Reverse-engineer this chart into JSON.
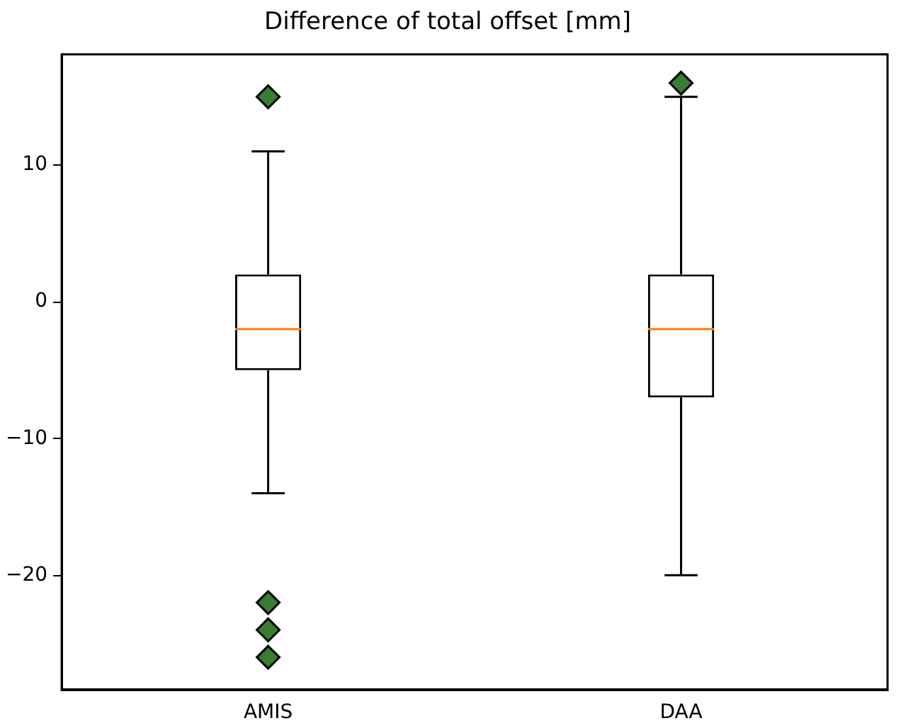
{
  "chart_data": {
    "type": "box",
    "title": "Difference of total offset [mm]",
    "categories": [
      "AMIS",
      "DAA"
    ],
    "boxes": [
      {
        "low": -14,
        "q1": -5,
        "median": -2,
        "q3": 2,
        "high": 11,
        "outliers": [
          15,
          -22,
          -24,
          -26
        ]
      },
      {
        "low": -20,
        "q1": -7,
        "median": -2,
        "q3": 2,
        "high": 15,
        "outliers": [
          16
        ]
      }
    ],
    "ylim": [
      -28.4,
      18.1
    ],
    "yticks": [
      -20,
      -10,
      0,
      10
    ],
    "grid": false,
    "legend": false,
    "marker": "diamond"
  }
}
